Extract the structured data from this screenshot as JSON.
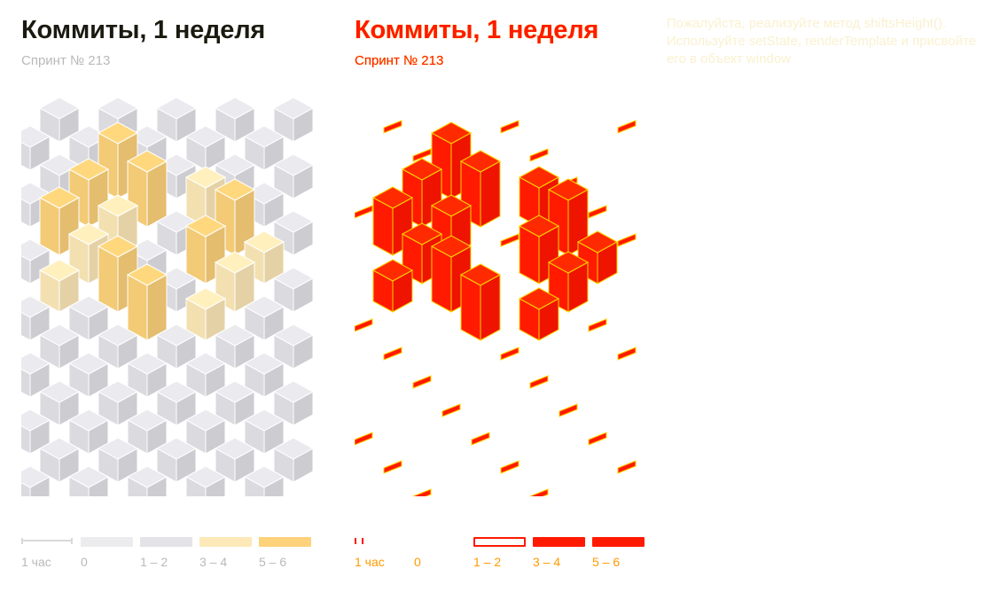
{
  "title": "Коммиты, 1 неделя",
  "subtitle": "Спринт № 213",
  "notice": "Пожалуйста, реализуйте метод shiftsHeight(). Используйте setState, renderTemplate и присвойте его в объект window",
  "legend": {
    "scale_label": "1 час",
    "bins": [
      {
        "label": "0",
        "color": "#ececee"
      },
      {
        "label": "1 – 2",
        "color": "#e3e3e8"
      },
      {
        "label": "3 – 4",
        "color": "#fde9b8"
      },
      {
        "label": "5 – 6",
        "color": "#fdd27a"
      }
    ]
  },
  "chart_data": {
    "type": "isometric-bar-grid",
    "title": "Коммиты, 1 неделя",
    "subtitle": "Спринт № 213",
    "scale": "1 час",
    "bins": [
      "0",
      "1 – 2",
      "3 – 4",
      "5 – 6"
    ],
    "grid": [
      [
        0,
        1,
        0,
        1,
        0,
        1,
        0,
        1,
        0,
        1
      ],
      [
        1,
        0,
        1,
        0,
        1,
        0,
        1,
        0,
        1,
        0
      ],
      [
        0,
        1,
        0,
        6,
        0,
        1,
        0,
        1,
        0,
        1
      ],
      [
        1,
        0,
        5,
        0,
        6,
        0,
        4,
        0,
        1,
        0
      ],
      [
        0,
        5,
        0,
        4,
        0,
        1,
        0,
        6,
        0,
        1
      ],
      [
        1,
        0,
        4,
        0,
        1,
        0,
        5,
        0,
        3,
        0
      ],
      [
        0,
        3,
        0,
        6,
        0,
        1,
        0,
        4,
        0,
        1
      ],
      [
        1,
        0,
        1,
        0,
        6,
        0,
        3,
        0,
        1,
        0
      ],
      [
        0,
        1,
        0,
        1,
        0,
        1,
        0,
        1,
        0,
        1
      ],
      [
        1,
        3,
        1,
        0,
        1,
        0,
        1,
        0,
        1,
        0
      ],
      [
        0,
        1,
        0,
        1,
        0,
        1,
        0,
        1,
        0,
        1
      ],
      [
        1,
        0,
        1,
        0,
        1,
        0,
        1,
        0,
        1,
        0
      ],
      [
        0,
        1,
        0,
        1,
        0,
        1,
        0,
        1,
        0,
        1
      ],
      [
        1,
        0,
        1,
        0,
        1,
        0,
        1,
        0,
        1,
        0
      ]
    ]
  }
}
